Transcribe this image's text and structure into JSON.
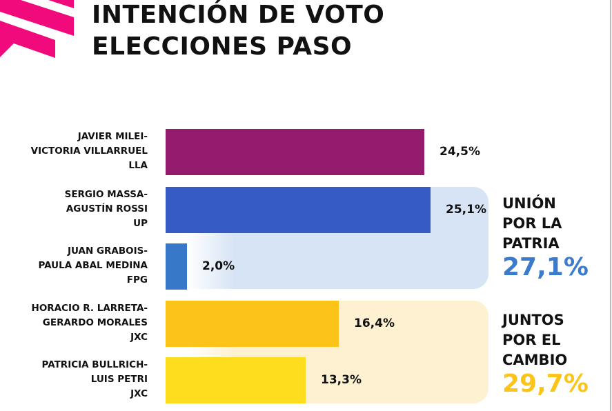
{
  "title": [
    "INTENCIÓN DE VOTO",
    "ELECCIONES PASO"
  ],
  "chart_data": {
    "type": "bar",
    "orientation": "horizontal",
    "title": "INTENCIÓN DE VOTO ELECCIONES PASO",
    "categories": [
      [
        "JAVIER MILEI-",
        "VICTORIA VILLARRUEL",
        "LLA"
      ],
      [
        "SERGIO MASSA-",
        "AGUSTÍN ROSSI",
        "UP"
      ],
      [
        "JUAN GRABOIS-",
        "PAULA ABAL MEDINA",
        "FPG"
      ],
      [
        "HORACIO R. LARRETA-",
        "GERARDO MORALES",
        "JXC"
      ],
      [
        "PATRICIA BULLRICH-",
        "LUIS PETRI",
        "JXC"
      ]
    ],
    "values": [
      24.5,
      25.1,
      2.0,
      16.4,
      13.3
    ],
    "value_labels": [
      "24,5%",
      "25,1%",
      "2,0%",
      "16,4%",
      "13,3%"
    ],
    "colors": [
      "#941b6d",
      "#365cc4",
      "#3878c8",
      "#fcc419",
      "#fedd1f"
    ],
    "groups": [
      {
        "name": [
          "UNIÓN",
          "POR LA",
          "PATRIA"
        ],
        "total": "27,1%",
        "color": "#3a7bcb",
        "bg": "#d7e4f5"
      },
      {
        "name": [
          "JUNTOS",
          "POR EL",
          "CAMBIO"
        ],
        "total": "29,7%",
        "color": "#fcc419",
        "bg": "#fdf1d2"
      }
    ],
    "xlabel": "",
    "ylabel": ""
  }
}
